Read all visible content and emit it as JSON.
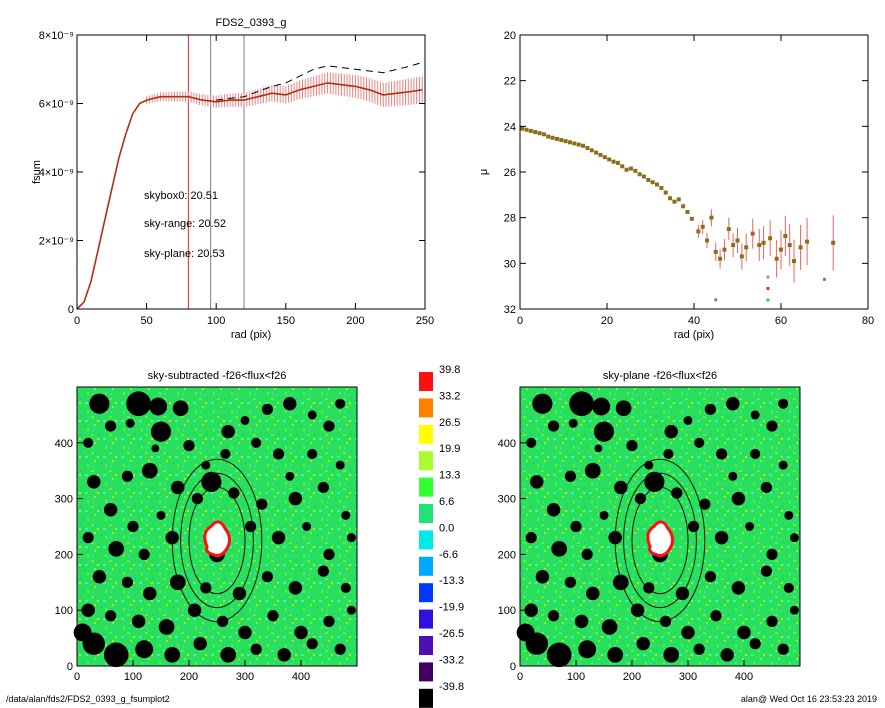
{
  "footer": {
    "path": "/data/alan/fds2/FDS2_0393_g_fsumplot2",
    "stamp": "alan@  Wed Oct 16 23:53:23 2019"
  },
  "chart_data": [
    {
      "type": "line",
      "title": "FDS2_0393_g",
      "xlabel": "rad (pix)",
      "ylabel": "fsum",
      "xlim": [
        0,
        250
      ],
      "ylim": [
        0,
        8e-09
      ],
      "xticks": [
        "0",
        "50",
        "100",
        "150",
        "200",
        "250"
      ],
      "yticks": [
        "0",
        "2×10⁻⁹",
        "4×10⁻⁹",
        "6×10⁻⁹",
        "8×10⁻⁹"
      ],
      "vlines": [
        {
          "x": 80,
          "color": "#e8202a"
        },
        {
          "x": 96,
          "color": "#808080"
        },
        {
          "x": 120,
          "color": "#808080"
        }
      ],
      "annotations": [
        {
          "text": "skybox0: 20.51",
          "color": "#000000"
        },
        {
          "text": "sky-range: 20.52",
          "color": "#e8202a"
        },
        {
          "text": "sky-plane: 20.53",
          "color": "#22dd22"
        }
      ],
      "series": [
        {
          "style": "solid",
          "color": "#b03010",
          "x": [
            0,
            5,
            10,
            15,
            20,
            25,
            30,
            35,
            40,
            45,
            50,
            60,
            70,
            80,
            90,
            100,
            110,
            120,
            130,
            140,
            150,
            160,
            170,
            180,
            190,
            200,
            210,
            220,
            230,
            240,
            248
          ],
          "y": [
            0,
            2e-10,
            8e-10,
            1.7e-09,
            2.6e-09,
            3.5e-09,
            4.4e-09,
            5.1e-09,
            5.7e-09,
            6e-09,
            6.1e-09,
            6.2e-09,
            6.2e-09,
            6.2e-09,
            6.1e-09,
            6.05e-09,
            6.1e-09,
            6.1e-09,
            6.2e-09,
            6.3e-09,
            6.25e-09,
            6.4e-09,
            6.5e-09,
            6.6e-09,
            6.55e-09,
            6.5e-09,
            6.4e-09,
            6.25e-09,
            6.3e-09,
            6.35e-09,
            6.4e-09
          ],
          "err_from": 50,
          "err_frac": 0.045
        },
        {
          "style": "dashed",
          "color": "#000000",
          "x": [
            100,
            110,
            120,
            130,
            140,
            150,
            160,
            170,
            180,
            190,
            200,
            210,
            220,
            230,
            240,
            248
          ],
          "y": [
            6.1e-09,
            6.15e-09,
            6.2e-09,
            6.35e-09,
            6.5e-09,
            6.6e-09,
            6.8e-09,
            7e-09,
            7.1e-09,
            7.05e-09,
            7e-09,
            6.95e-09,
            6.9e-09,
            7e-09,
            7.1e-09,
            7.2e-09
          ]
        }
      ]
    },
    {
      "type": "scatter",
      "xlabel": "rad (pix)",
      "ylabel": "μ",
      "xlim": [
        0,
        80
      ],
      "ylim": [
        32,
        20
      ],
      "xticks": [
        "0",
        "20",
        "40",
        "60",
        "80"
      ],
      "yticks": [
        "20",
        "22",
        "24",
        "26",
        "28",
        "30",
        "32"
      ],
      "points": [
        [
          0.5,
          24.1
        ],
        [
          1.5,
          24.15
        ],
        [
          2.5,
          24.2
        ],
        [
          3.5,
          24.25
        ],
        [
          4.5,
          24.3
        ],
        [
          5.5,
          24.35
        ],
        [
          6.5,
          24.45
        ],
        [
          7.5,
          24.5
        ],
        [
          8.5,
          24.55
        ],
        [
          9.5,
          24.6
        ],
        [
          10.5,
          24.65
        ],
        [
          11.5,
          24.7
        ],
        [
          12.5,
          24.75
        ],
        [
          13.5,
          24.8
        ],
        [
          14.5,
          24.85
        ],
        [
          15.5,
          24.95
        ],
        [
          16.5,
          25.05
        ],
        [
          17.5,
          25.15
        ],
        [
          18.5,
          25.25
        ],
        [
          19.5,
          25.35
        ],
        [
          20.5,
          25.45
        ],
        [
          21.5,
          25.55
        ],
        [
          22.5,
          25.6
        ],
        [
          23.5,
          25.75
        ],
        [
          24.5,
          25.9
        ],
        [
          25.5,
          25.85
        ],
        [
          26.5,
          25.95
        ],
        [
          27.5,
          26.1
        ],
        [
          28.5,
          26.2
        ],
        [
          29.5,
          26.35
        ],
        [
          30.5,
          26.45
        ],
        [
          31.5,
          26.55
        ],
        [
          32.5,
          26.7
        ],
        [
          33.5,
          26.9
        ],
        [
          34.5,
          27.15
        ],
        [
          35.5,
          27.3
        ],
        [
          36.5,
          27.2
        ],
        [
          37.5,
          27.5
        ],
        [
          38.5,
          27.75
        ],
        [
          39.5,
          28.05
        ],
        [
          41,
          28.6
        ],
        [
          42,
          28.4
        ],
        [
          43,
          29.0
        ],
        [
          44,
          28.0
        ],
        [
          45,
          29.5
        ],
        [
          46,
          29.8
        ],
        [
          47,
          29.4
        ],
        [
          48,
          28.5
        ],
        [
          49,
          29.2
        ],
        [
          50,
          29.0
        ],
        [
          51,
          29.7
        ],
        [
          52,
          29.3
        ],
        [
          53.5,
          28.7
        ],
        [
          55,
          29.2
        ],
        [
          56,
          29.1
        ],
        [
          57.5,
          28.9
        ],
        [
          59,
          29.8
        ],
        [
          60,
          29.4
        ],
        [
          61,
          28.8
        ],
        [
          62,
          29.2
        ],
        [
          63,
          29.9
        ],
        [
          64.5,
          29.3
        ],
        [
          66,
          29.05
        ],
        [
          72,
          29.1
        ]
      ]
    },
    {
      "type": "heatmap",
      "title": "sky-subtracted -f26<flux<f26",
      "xlim": [
        0,
        500
      ],
      "ylim": [
        0,
        500
      ],
      "xticks": [
        "0",
        "100",
        "200",
        "300",
        "400"
      ],
      "yticks": [
        "0",
        "100",
        "200",
        "300",
        "400"
      ],
      "center": [
        250,
        225
      ],
      "ellipses": [
        [
          50,
          95
        ],
        [
          65,
          120
        ],
        [
          80,
          145
        ]
      ]
    },
    {
      "type": "heatmap",
      "title": "sky-plane -f26<flux<f26",
      "xlim": [
        0,
        500
      ],
      "ylim": [
        0,
        500
      ],
      "xticks": [
        "0",
        "100",
        "200",
        "300",
        "400"
      ],
      "yticks": [
        "0",
        "100",
        "200",
        "300",
        "400"
      ],
      "center": [
        250,
        225
      ],
      "ellipses": [
        [
          50,
          95
        ],
        [
          65,
          120
        ],
        [
          80,
          145
        ]
      ]
    }
  ],
  "colorbar": {
    "labels": [
      "39.8",
      "33.2",
      "26.5",
      "19.9",
      "13.3",
      "6.6",
      "0.0",
      "-6.6",
      "-13.3",
      "-19.9",
      "-26.5",
      "-33.2",
      "-39.8"
    ],
    "colors": [
      "#ff1010",
      "#ff7f00",
      "#ffff00",
      "#a8ff30",
      "#30ff30",
      "#22e07a",
      "#00e8e8",
      "#00a8ff",
      "#0038ff",
      "#3010e0",
      "#5010b0",
      "#400060",
      "#000000"
    ]
  }
}
